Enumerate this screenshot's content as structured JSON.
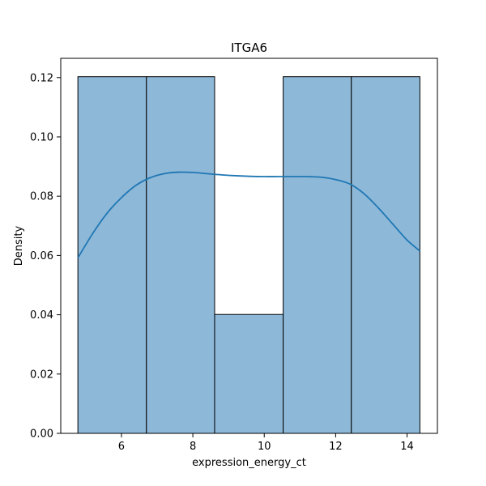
{
  "chart_data": {
    "type": "bar",
    "title": "ITGA6",
    "xlabel": "expression_energy_ct",
    "ylabel": "Density",
    "xlim": [
      4.3,
      14.85
    ],
    "ylim": [
      0,
      0.1265
    ],
    "x_ticks": [
      6,
      8,
      10,
      12,
      14
    ],
    "y_ticks": [
      0.0,
      0.02,
      0.04,
      0.06,
      0.08,
      0.1,
      0.12
    ],
    "bins": [
      {
        "x0": 4.78,
        "x1": 6.7,
        "density": 0.1203
      },
      {
        "x0": 6.7,
        "x1": 8.61,
        "density": 0.1203
      },
      {
        "x0": 8.61,
        "x1": 10.53,
        "density": 0.0401
      },
      {
        "x0": 10.53,
        "x1": 12.44,
        "density": 0.1203
      },
      {
        "x0": 12.44,
        "x1": 14.36,
        "density": 0.1203
      }
    ],
    "kde": {
      "x": [
        4.78,
        5.2,
        5.6,
        6.0,
        6.4,
        6.8,
        7.2,
        7.6,
        8.0,
        8.4,
        8.8,
        9.2,
        9.6,
        10.0,
        10.4,
        10.8,
        11.2,
        11.6,
        12.0,
        12.4,
        12.8,
        13.2,
        13.6,
        14.0,
        14.36
      ],
      "y": [
        0.0592,
        0.0675,
        0.0743,
        0.0795,
        0.0836,
        0.0862,
        0.0876,
        0.0881,
        0.088,
        0.0876,
        0.0872,
        0.0869,
        0.0867,
        0.0866,
        0.0866,
        0.0866,
        0.0866,
        0.0864,
        0.0856,
        0.0841,
        0.0808,
        0.076,
        0.0706,
        0.0652,
        0.0615
      ]
    },
    "grid": false,
    "colors": {
      "bar_fill": "#8db8d8",
      "bar_edge": "#000000",
      "kde_line": "#1f77b4"
    }
  }
}
